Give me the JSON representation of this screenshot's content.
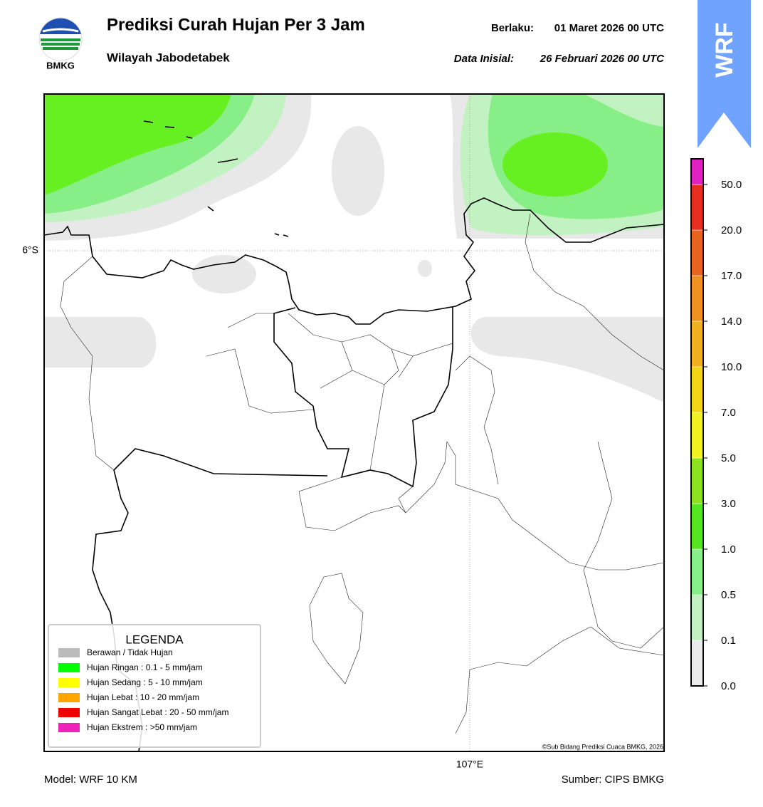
{
  "header": {
    "title": "Prediksi Curah Hujan Per 3 Jam",
    "subtitle": "Wilayah Jabodetabek",
    "valid_label": "Berlaku:",
    "valid": "01 Maret 2026 00 UTC",
    "init_label": "Data Inisial:",
    "init": "26 Februari 2026 00 UTC"
  },
  "logo": "BMKG",
  "badge": "WRF",
  "map": {
    "lat_label": "6°S",
    "lon_label": "107°E",
    "credit": "©Sub Bidang Prediksi Cuaca BMKG, 2026"
  },
  "legend": {
    "title": "LEGENDA",
    "items": [
      {
        "label": "Berawan / Tidak Hujan",
        "color": "#bbbbbb"
      },
      {
        "label": "Hujan Ringan : 0.1 - 5 mm/jam",
        "color": "#00ff00"
      },
      {
        "label": "Hujan Sedang : 5 - 10 mm/jam",
        "color": "#ffff00"
      },
      {
        "label": "Hujan Lebat : 10 - 20 mm/jam",
        "color": "#ffa500"
      },
      {
        "label": "Hujan Sangat Lebat : 20 - 50 mm/jam",
        "color": "#ee0000"
      },
      {
        "label": "Hujan Ekstrem : >50 mm/jam",
        "color": "#ee22bb"
      }
    ]
  },
  "colorbar": {
    "ticks": [
      "0.0",
      "0.1",
      "0.5",
      "1.0",
      "3.0",
      "5.0",
      "7.0",
      "10.0",
      "14.0",
      "17.0",
      "20.0",
      "50.0"
    ],
    "colors": [
      "#ebebeb",
      "#c2f2c2",
      "#88ee88",
      "#55e622",
      "#8ee022",
      "#f2f222",
      "#f2d414",
      "#f0b020",
      "#f09020",
      "#e86420",
      "#e82e1e",
      "#e020c0"
    ]
  },
  "footer": {
    "model": "Model: WRF 10 KM",
    "source": "Sumber: CIPS BMKG"
  }
}
